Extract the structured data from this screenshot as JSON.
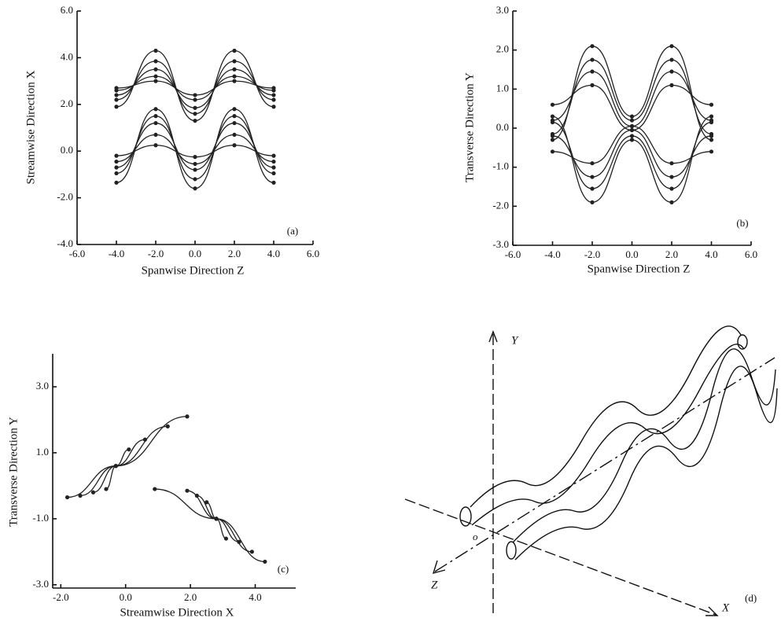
{
  "chart_data": [
    {
      "type": "line",
      "x_label": "Spanwise Direction Z",
      "y_label": "Streamwise Direction X",
      "annotation": "(a)",
      "xlim": [
        -6,
        6
      ],
      "ylim": [
        -4,
        6
      ],
      "xticks": [
        {
          "value": -6,
          "label": "-6.0"
        },
        {
          "value": -4,
          "label": "-4.0"
        },
        {
          "value": -2,
          "label": "-2.0"
        },
        {
          "value": 0,
          "label": "0.0"
        },
        {
          "value": 2,
          "label": "2.0"
        },
        {
          "value": 4,
          "label": "4.0"
        },
        {
          "value": 6,
          "label": "6.0"
        }
      ],
      "yticks": [
        {
          "value": -4,
          "label": "-4.0"
        },
        {
          "value": -2,
          "label": "-2.0"
        },
        {
          "value": 0,
          "label": "0.0"
        },
        {
          "value": 2,
          "label": "2.0"
        },
        {
          "value": 4,
          "label": "4.0"
        },
        {
          "value": 6,
          "label": "6.0"
        }
      ],
      "x": [
        -4,
        -2,
        0,
        2,
        4
      ],
      "color": "#222222",
      "series": [
        {
          "values": [
            1.9,
            4.3,
            1.3,
            4.3,
            1.9
          ]
        },
        {
          "values": [
            2.2,
            3.85,
            1.6,
            3.85,
            2.2
          ]
        },
        {
          "values": [
            2.4,
            3.5,
            1.85,
            3.5,
            2.4
          ]
        },
        {
          "values": [
            2.6,
            3.2,
            2.2,
            3.2,
            2.6
          ]
        },
        {
          "values": [
            2.7,
            3.0,
            2.4,
            3.0,
            2.7
          ]
        },
        {
          "values": [
            -1.35,
            1.8,
            -1.6,
            1.8,
            -1.35
          ]
        },
        {
          "values": [
            -0.95,
            1.5,
            -1.2,
            1.5,
            -0.95
          ]
        },
        {
          "values": [
            -0.7,
            1.2,
            -0.8,
            1.2,
            -0.7
          ]
        },
        {
          "values": [
            -0.45,
            0.7,
            -0.55,
            0.7,
            -0.45
          ]
        },
        {
          "values": [
            -0.2,
            0.25,
            -0.25,
            0.25,
            -0.2
          ]
        }
      ]
    },
    {
      "type": "line",
      "x_label": "Spanwise Direction Z",
      "y_label": "Transverse Direction Y",
      "annotation": "(b)",
      "xlim": [
        -6,
        6
      ],
      "ylim": [
        -3,
        3
      ],
      "xticks": [
        {
          "value": -6,
          "label": "-6.0"
        },
        {
          "value": -4,
          "label": "-4.0"
        },
        {
          "value": -2,
          "label": "-2.0"
        },
        {
          "value": 0,
          "label": "0.0"
        },
        {
          "value": 2,
          "label": "2.0"
        },
        {
          "value": 4,
          "label": "4.0"
        },
        {
          "value": 6,
          "label": "6.0"
        }
      ],
      "yticks": [
        {
          "value": -3,
          "label": "-3.0"
        },
        {
          "value": -2,
          "label": "-2.0"
        },
        {
          "value": -1,
          "label": "-1.0"
        },
        {
          "value": 0,
          "label": "0.0"
        },
        {
          "value": 1,
          "label": "1.0"
        },
        {
          "value": 2,
          "label": "2.0"
        },
        {
          "value": 3,
          "label": "3.0"
        }
      ],
      "x": [
        -4,
        -2,
        0,
        2,
        4
      ],
      "color": "#222222",
      "series": [
        {
          "values": [
            -0.3,
            2.1,
            0.3,
            2.1,
            -0.3
          ]
        },
        {
          "values": [
            -0.15,
            1.75,
            0.2,
            1.75,
            -0.15
          ]
        },
        {
          "values": [
            0.2,
            1.45,
            0.05,
            1.45,
            0.2
          ]
        },
        {
          "values": [
            0.6,
            1.1,
            -0.05,
            1.1,
            0.6
          ]
        },
        {
          "values": [
            0.3,
            -1.9,
            -0.3,
            -1.9,
            0.3
          ]
        },
        {
          "values": [
            0.15,
            -1.55,
            -0.2,
            -1.55,
            0.15
          ]
        },
        {
          "values": [
            -0.2,
            -1.25,
            -0.05,
            -1.25,
            -0.2
          ]
        },
        {
          "values": [
            -0.6,
            -0.9,
            0.05,
            -0.9,
            -0.6
          ]
        }
      ]
    },
    {
      "type": "line",
      "x_label": "Streamwise Direction X",
      "y_label": "Transverse Direction Y",
      "annotation": "(c)",
      "xlim": [
        -2.25,
        5.25
      ],
      "ylim": [
        -3.1,
        4.0
      ],
      "xticks": [
        {
          "value": -2,
          "label": "-2.0"
        },
        {
          "value": 0,
          "label": "0.0"
        },
        {
          "value": 2,
          "label": "2.0"
        },
        {
          "value": 4,
          "label": "4.0"
        }
      ],
      "yticks": [
        {
          "value": -3,
          "label": "-3.0"
        },
        {
          "value": -1,
          "label": "-1.0"
        },
        {
          "value": 1,
          "label": "1.0"
        },
        {
          "value": 3,
          "label": "3.0"
        }
      ],
      "color": "#222222",
      "series": [
        {
          "x": [
            -1.8,
            -0.3,
            1.9
          ],
          "values": [
            -0.35,
            0.6,
            2.1
          ]
        },
        {
          "x": [
            -1.4,
            -0.3,
            1.3
          ],
          "values": [
            -0.3,
            0.6,
            1.8
          ]
        },
        {
          "x": [
            -1.0,
            -0.3,
            0.6
          ],
          "values": [
            -0.2,
            0.6,
            1.4
          ]
        },
        {
          "x": [
            -0.6,
            -0.3,
            0.1
          ],
          "values": [
            -0.1,
            0.6,
            1.1
          ]
        },
        {
          "x": [
            0.9,
            2.8,
            4.3
          ],
          "values": [
            -0.1,
            -1.0,
            -2.3
          ]
        },
        {
          "x": [
            1.9,
            2.8,
            3.9
          ],
          "values": [
            -0.15,
            -1.0,
            -2.0
          ]
        },
        {
          "x": [
            2.2,
            2.8,
            3.5
          ],
          "values": [
            -0.3,
            -1.0,
            -1.7
          ]
        },
        {
          "x": [
            2.5,
            2.8,
            3.1
          ],
          "values": [
            -0.5,
            -1.0,
            -1.6
          ]
        }
      ]
    }
  ],
  "diagram": {
    "y_axis": "Y",
    "x_axis": "X",
    "z_axis": "Z",
    "origin": "o",
    "annotation": "(d)"
  }
}
